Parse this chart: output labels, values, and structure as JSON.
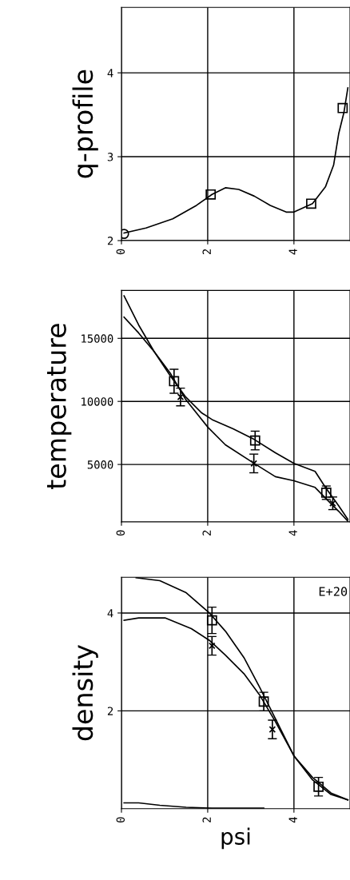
{
  "chart_data": [
    {
      "type": "line",
      "ylabel": "q-profile",
      "xlim": [
        0,
        5.3
      ],
      "ylim": [
        2,
        4.78
      ],
      "xticks": [
        0,
        2,
        4
      ],
      "yticks": [
        2,
        3,
        4
      ],
      "grid": true,
      "series": [
        {
          "color": "#000000",
          "x": [
            0.06,
            0.57,
            1.19,
            1.74,
            2.1,
            2.41,
            2.72,
            3.08,
            3.45,
            3.82,
            4.0,
            4.43,
            4.73,
            4.92,
            5.04,
            5.16,
            5.25
          ],
          "values": [
            2.09,
            2.15,
            2.26,
            2.42,
            2.55,
            2.63,
            2.61,
            2.53,
            2.42,
            2.34,
            2.34,
            2.44,
            2.64,
            2.9,
            3.28,
            3.53,
            3.82
          ]
        },
        {
          "type": "scatter",
          "marker": "square",
          "color": "#000000",
          "x": [
            2.07,
            4.4,
            5.13
          ],
          "values": [
            2.55,
            2.44,
            3.58
          ]
        },
        {
          "type": "scatter",
          "marker": "circle",
          "color": "#000000",
          "x": [
            0.06
          ],
          "values": [
            2.08
          ]
        }
      ]
    },
    {
      "type": "line",
      "ylabel": "temperature",
      "xlim": [
        0,
        5.3
      ],
      "ylim": [
        450,
        18800
      ],
      "xticks": [
        0,
        2,
        4
      ],
      "yticks": [
        5000,
        10000,
        15000
      ],
      "grid": true,
      "series": [
        {
          "color": "#000000",
          "x": [
            0.06,
            0.4,
            0.76,
            1.13,
            1.49,
            1.86,
            2.1,
            2.59,
            3.08,
            3.57,
            4.0,
            4.49,
            4.73,
            5.04,
            5.25
          ],
          "values": [
            18370,
            16050,
            13940,
            12040,
            10350,
            9090,
            8560,
            7820,
            6980,
            5920,
            5080,
            4450,
            3180,
            1710,
            650
          ]
        },
        {
          "color": "#000000",
          "x": [
            0.06,
            0.4,
            0.76,
            1.13,
            1.49,
            2.01,
            2.41,
            3.08,
            3.57,
            4.0,
            4.49,
            4.73,
            5.04,
            5.25
          ],
          "values": [
            16680,
            15420,
            13940,
            12250,
            10150,
            7930,
            6560,
            5080,
            4030,
            3710,
            3180,
            2340,
            1280,
            500
          ]
        },
        {
          "type": "scatter",
          "marker": "square",
          "color": "#000000",
          "x": [
            1.22,
            3.1,
            4.75
          ],
          "values": [
            11600,
            6900,
            2760
          ],
          "errors": [
            950,
            740,
            530
          ]
        },
        {
          "type": "scatter",
          "marker": "cross",
          "color": "#000000",
          "x": [
            1.37,
            3.07,
            4.9
          ],
          "values": [
            10350,
            5080,
            1920
          ],
          "errors": [
            700,
            740,
            500
          ]
        }
      ]
    },
    {
      "type": "line",
      "ylabel": "density",
      "xlabel": "psi",
      "xlim": [
        0,
        5.3
      ],
      "ylim": [
        0,
        4.73
      ],
      "xticks": [
        0,
        2,
        4
      ],
      "yticks": [
        2,
        4
      ],
      "grid": true,
      "annotations": [
        "E+20"
      ],
      "series": [
        {
          "color": "#000000",
          "x": [
            0.34,
            0.89,
            1.49,
            2.04,
            2.41,
            2.84,
            3.2,
            3.57,
            4.0,
            4.43,
            4.86,
            5.25
          ],
          "values": [
            4.72,
            4.66,
            4.42,
            4.0,
            3.63,
            3.09,
            2.49,
            1.84,
            1.08,
            0.59,
            0.29,
            0.18
          ]
        },
        {
          "color": "#000000",
          "x": [
            0.06,
            0.4,
            1.01,
            1.62,
            2.04,
            2.41,
            2.84,
            3.2,
            3.57,
            4.0,
            4.43,
            4.86,
            5.25
          ],
          "values": [
            3.85,
            3.9,
            3.9,
            3.68,
            3.44,
            3.14,
            2.76,
            2.33,
            1.78,
            1.08,
            0.64,
            0.32,
            0.18
          ]
        },
        {
          "color": "#000000",
          "x": [
            0.06,
            0.4,
            0.89,
            1.5,
            2.1,
            3.3
          ],
          "values": [
            0.12,
            0.12,
            0.07,
            0.03,
            0.01,
            0.01
          ]
        },
        {
          "type": "scatter",
          "marker": "square",
          "color": "#000000",
          "x": [
            2.1,
            3.3,
            4.57
          ],
          "values": [
            3.85,
            2.19,
            0.45
          ],
          "errors": [
            0.27,
            0.19,
            0.19
          ]
        },
        {
          "type": "scatter",
          "marker": "cross",
          "color": "#000000",
          "x": [
            2.1,
            3.5
          ],
          "values": [
            3.33,
            1.62
          ],
          "errors": [
            0.19,
            0.19
          ]
        }
      ]
    }
  ]
}
